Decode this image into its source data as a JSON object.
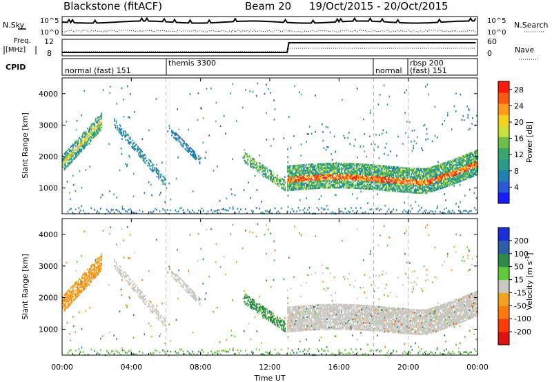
{
  "header": {
    "title": "Blackstone (fitACF)",
    "beam": "Beam 20",
    "date_range": "19/Oct/2015 - 20/Oct/2015"
  },
  "strips": {
    "nsky": {
      "label": "N.Sky",
      "tick_left_top": "10^5",
      "tick_left_bottom": "10^0",
      "tick_right_top": "10^5",
      "tick_right_bottom": "10^0",
      "right_label": "N.Search"
    },
    "freq": {
      "label_1": "Freq.",
      "label_2": "[MHz]",
      "tick_left_top": "12",
      "tick_left_bottom": "8",
      "tick_right_top": "60",
      "tick_right_bottom": "0",
      "right_label": "Nave"
    },
    "cpid": {
      "label": "CPID",
      "segments": [
        {
          "label": "normal (fast) 151",
          "start_hour": 0
        },
        {
          "label": "themis 3300",
          "start_hour": 6
        },
        {
          "label": "normal",
          "start_hour": 18
        },
        {
          "label": "rbsp 200",
          "start_hour": 20
        },
        {
          "label": "(fast) 151",
          "start_hour": 20
        }
      ]
    }
  },
  "chart_data": [
    {
      "type": "heatmap",
      "panel": "power",
      "ylabel": "Slant Range [km]",
      "xlabel": "Time UT",
      "x_ticks": [
        "00:00",
        "04:00",
        "08:00",
        "12:00",
        "16:00",
        "20:00",
        "00:00"
      ],
      "y_ticks": [
        1000,
        2000,
        3000,
        4000
      ],
      "ylim": [
        180,
        4500
      ],
      "xlim_hours": [
        0,
        24
      ],
      "colorbar": {
        "label": "Power [dB]",
        "ticks": [
          4,
          8,
          12,
          16,
          20,
          24,
          28
        ],
        "range": [
          0,
          30
        ],
        "colors": [
          "#1a1aff",
          "#2a5bd6",
          "#1f7fb0",
          "#2a9a8a",
          "#3aa66b",
          "#6cc04a",
          "#c9e23a",
          "#f6d21f",
          "#ff9a1a",
          "#ff5a12",
          "#ff1a0a"
        ]
      }
    },
    {
      "type": "heatmap",
      "panel": "velocity",
      "ylabel": "Slant Range [km]",
      "xlabel": "Time UT",
      "x_ticks": [
        "00:00",
        "04:00",
        "08:00",
        "12:00",
        "16:00",
        "20:00",
        "00:00"
      ],
      "y_ticks": [
        1000,
        2000,
        3000,
        4000
      ],
      "ylim": [
        180,
        4500
      ],
      "xlim_hours": [
        0,
        24
      ],
      "colorbar": {
        "label": "Velocity [m s^-1]",
        "ticks": [
          200,
          100,
          50,
          15,
          -15,
          -50,
          -100,
          -200
        ],
        "colors": [
          "#1c2fd6",
          "#2f5ea8",
          "#2e8a46",
          "#5ecb3a",
          "#c8c8c0",
          "#f3a21f",
          "#ff7a10",
          "#ff3a0a",
          "#e01010"
        ]
      }
    }
  ],
  "xlabel": "Time UT"
}
